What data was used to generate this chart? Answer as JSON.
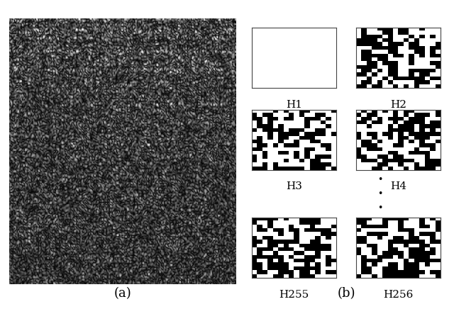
{
  "fig_width": 6.4,
  "fig_height": 4.36,
  "dpi": 100,
  "bg_color": "#ffffff",
  "label_a": "(a)",
  "label_b": "(b)",
  "h_labels": [
    "H1",
    "H2",
    "H3",
    "H4",
    "H255",
    "H256"
  ],
  "label_fontsize": 11,
  "caption_fontsize": 13,
  "noise_seed": 42
}
